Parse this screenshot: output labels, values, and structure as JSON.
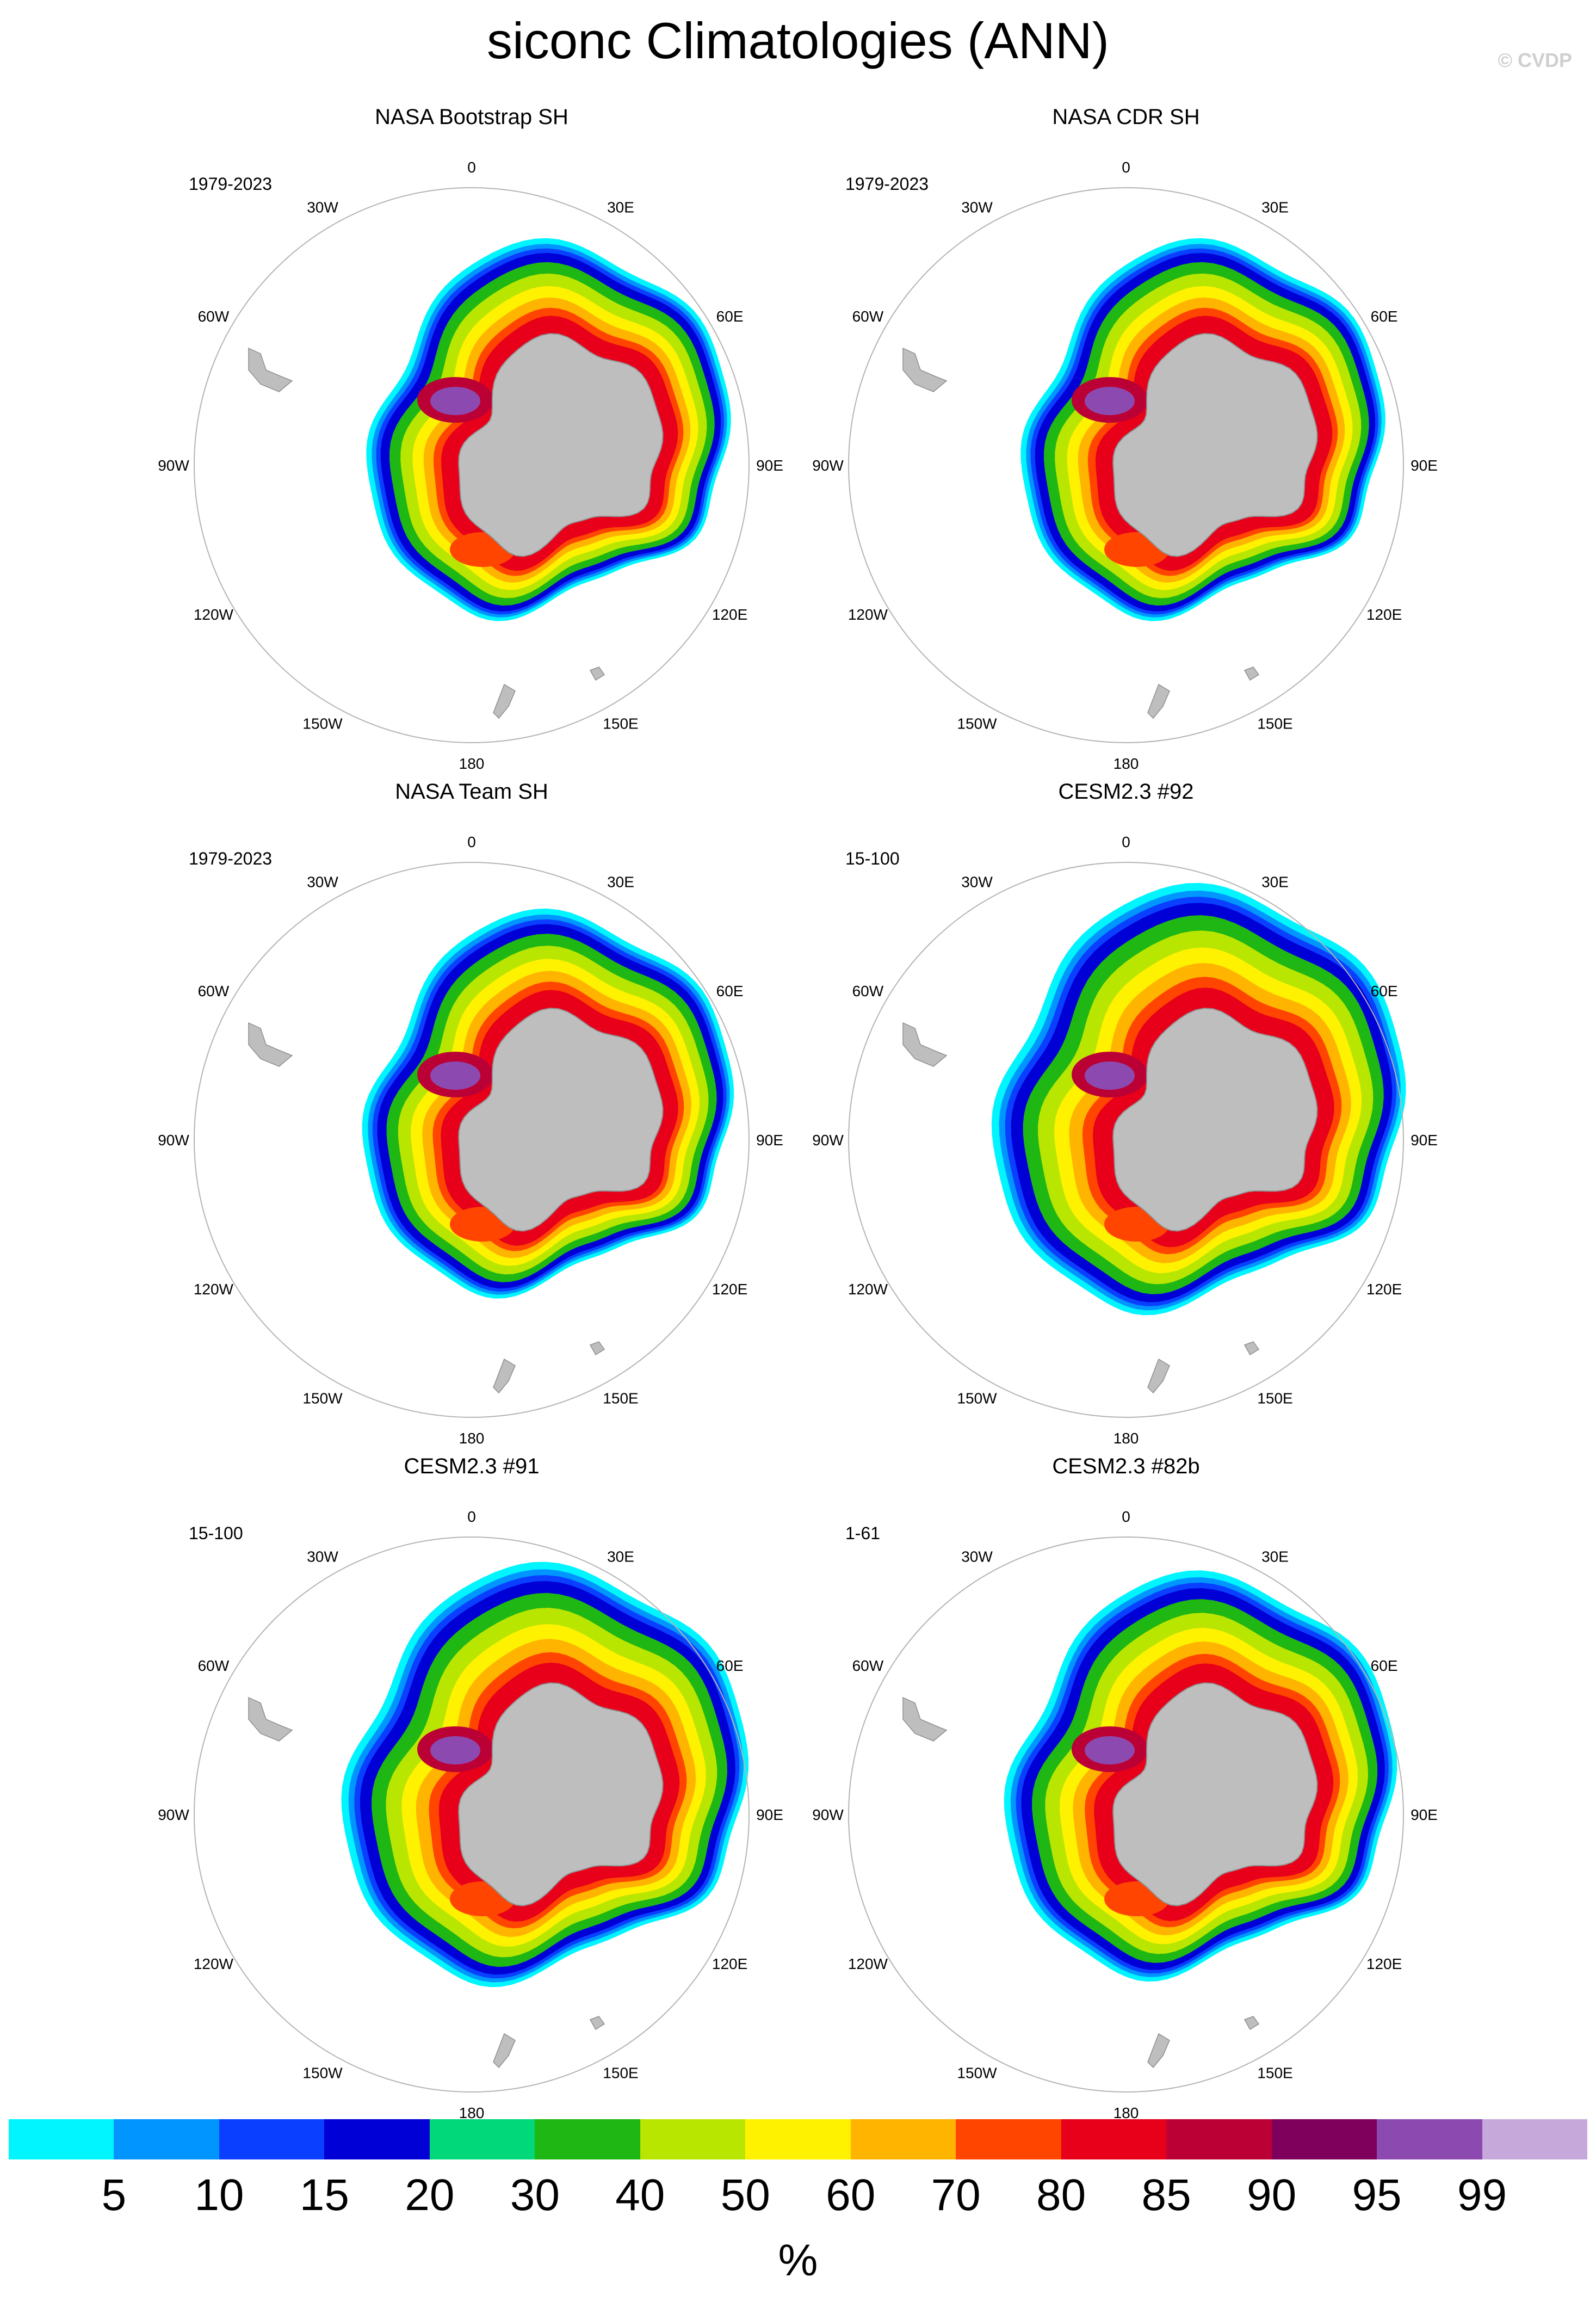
{
  "title": "siconc Climatologies (ANN)",
  "copyright": "© CVDP",
  "longitude_labels": [
    "0",
    "30E",
    "60E",
    "90E",
    "120E",
    "150E",
    "180",
    "150W",
    "120W",
    "90W",
    "60W",
    "30W"
  ],
  "panels": [
    {
      "title": "NASA Bootstrap SH",
      "period": "1979-2023"
    },
    {
      "title": "NASA CDR SH",
      "period": "1979-2023"
    },
    {
      "title": "NASA Team SH",
      "period": "1979-2023"
    },
    {
      "title": "CESM2.3 #92",
      "period": "15-100"
    },
    {
      "title": "CESM2.3 #91",
      "period": "15-100"
    },
    {
      "title": "CESM2.3 #82b",
      "period": "1-61"
    }
  ],
  "colorbar": {
    "unit": "%",
    "labels": [
      "5",
      "10",
      "15",
      "20",
      "30",
      "40",
      "50",
      "60",
      "70",
      "80",
      "85",
      "90",
      "95",
      "99"
    ],
    "colors": [
      "#00f5ff",
      "#0095ff",
      "#0a3fff",
      "#0000d6",
      "#00d87a",
      "#1fb714",
      "#b9e600",
      "#fff200",
      "#ffb400",
      "#ff4500",
      "#e8001a",
      "#bb0035",
      "#7e005c",
      "#8c4ab0",
      "#c6a8db"
    ]
  },
  "colors": {
    "land": "#bebebe",
    "coast": "#8f8f8f",
    "circle": "#b4b4b4"
  }
}
